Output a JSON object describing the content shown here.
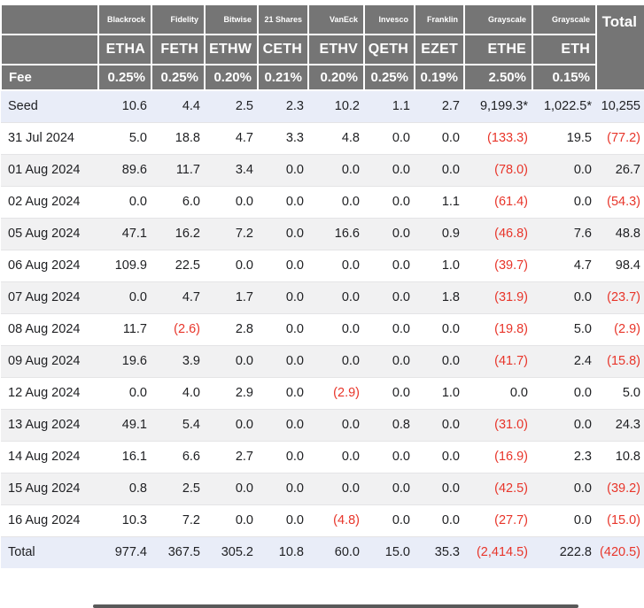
{
  "chart_data": {
    "type": "table",
    "title": "",
    "columns": {
      "providers": [
        "Blackrock",
        "Fidelity",
        "Bitwise",
        "21 Shares",
        "VanEck",
        "Invesco",
        "Franklin",
        "Grayscale",
        "Grayscale"
      ],
      "tickers": [
        "ETHA",
        "FETH",
        "ETHW",
        "CETH",
        "ETHV",
        "QETH",
        "EZET",
        "ETHE",
        "ETH"
      ],
      "fee_row_label": "Fee",
      "fees": [
        "0.25%",
        "0.25%",
        "0.20%",
        "0.21%",
        "0.20%",
        "0.25%",
        "0.19%",
        "2.50%",
        "0.15%"
      ],
      "total_label": "Total"
    },
    "rows": [
      {
        "label": "Seed",
        "highlight": true,
        "values": [
          "10.6",
          "4.4",
          "2.5",
          "2.3",
          "10.2",
          "1.1",
          "2.7",
          "9,199.3*",
          "1,022.5*",
          "10,255"
        ]
      },
      {
        "label": "31 Jul 2024",
        "highlight": false,
        "values": [
          "5.0",
          "18.8",
          "4.7",
          "3.3",
          "4.8",
          "0.0",
          "0.0",
          "(133.3)",
          "19.5",
          "(77.2)"
        ]
      },
      {
        "label": "01 Aug 2024",
        "highlight": false,
        "values": [
          "89.6",
          "11.7",
          "3.4",
          "0.0",
          "0.0",
          "0.0",
          "0.0",
          "(78.0)",
          "0.0",
          "26.7"
        ]
      },
      {
        "label": "02 Aug 2024",
        "highlight": false,
        "values": [
          "0.0",
          "6.0",
          "0.0",
          "0.0",
          "0.0",
          "0.0",
          "1.1",
          "(61.4)",
          "0.0",
          "(54.3)"
        ]
      },
      {
        "label": "05 Aug 2024",
        "highlight": false,
        "values": [
          "47.1",
          "16.2",
          "7.2",
          "0.0",
          "16.6",
          "0.0",
          "0.9",
          "(46.8)",
          "7.6",
          "48.8"
        ]
      },
      {
        "label": "06 Aug 2024",
        "highlight": false,
        "values": [
          "109.9",
          "22.5",
          "0.0",
          "0.0",
          "0.0",
          "0.0",
          "1.0",
          "(39.7)",
          "4.7",
          "98.4"
        ]
      },
      {
        "label": "07 Aug 2024",
        "highlight": false,
        "values": [
          "0.0",
          "4.7",
          "1.7",
          "0.0",
          "0.0",
          "0.0",
          "1.8",
          "(31.9)",
          "0.0",
          "(23.7)"
        ]
      },
      {
        "label": "08 Aug 2024",
        "highlight": false,
        "values": [
          "11.7",
          "(2.6)",
          "2.8",
          "0.0",
          "0.0",
          "0.0",
          "0.0",
          "(19.8)",
          "5.0",
          "(2.9)"
        ]
      },
      {
        "label": "09 Aug 2024",
        "highlight": false,
        "values": [
          "19.6",
          "3.9",
          "0.0",
          "0.0",
          "0.0",
          "0.0",
          "0.0",
          "(41.7)",
          "2.4",
          "(15.8)"
        ]
      },
      {
        "label": "12 Aug 2024",
        "highlight": false,
        "values": [
          "0.0",
          "4.0",
          "2.9",
          "0.0",
          "(2.9)",
          "0.0",
          "1.0",
          "0.0",
          "0.0",
          "5.0"
        ]
      },
      {
        "label": "13 Aug 2024",
        "highlight": false,
        "values": [
          "49.1",
          "5.4",
          "0.0",
          "0.0",
          "0.0",
          "0.8",
          "0.0",
          "(31.0)",
          "0.0",
          "24.3"
        ]
      },
      {
        "label": "14 Aug 2024",
        "highlight": false,
        "values": [
          "16.1",
          "6.6",
          "2.7",
          "0.0",
          "0.0",
          "0.0",
          "0.0",
          "(16.9)",
          "2.3",
          "10.8"
        ]
      },
      {
        "label": "15 Aug 2024",
        "highlight": false,
        "values": [
          "0.8",
          "2.5",
          "0.0",
          "0.0",
          "0.0",
          "0.0",
          "0.0",
          "(42.5)",
          "0.0",
          "(39.2)"
        ]
      },
      {
        "label": "16 Aug 2024",
        "highlight": false,
        "values": [
          "10.3",
          "7.2",
          "0.0",
          "0.0",
          "(4.8)",
          "0.0",
          "0.0",
          "(27.7)",
          "0.0",
          "(15.0)"
        ]
      },
      {
        "label": "Total",
        "highlight": true,
        "values": [
          "977.4",
          "367.5",
          "305.2",
          "10.8",
          "60.0",
          "15.0",
          "35.3",
          "(2,414.5)",
          "222.8",
          "(420.5)"
        ]
      }
    ]
  },
  "colors": {
    "header_bg": "#757575",
    "header_text": "#ffffff",
    "highlight_row_bg": "#e9edf8",
    "alt_row_bg": "#f1f1f2",
    "negative_text": "#e8352a",
    "body_text": "#202124",
    "row_border": "#e4e4e6",
    "scrollbar_thumb": "#595959"
  }
}
